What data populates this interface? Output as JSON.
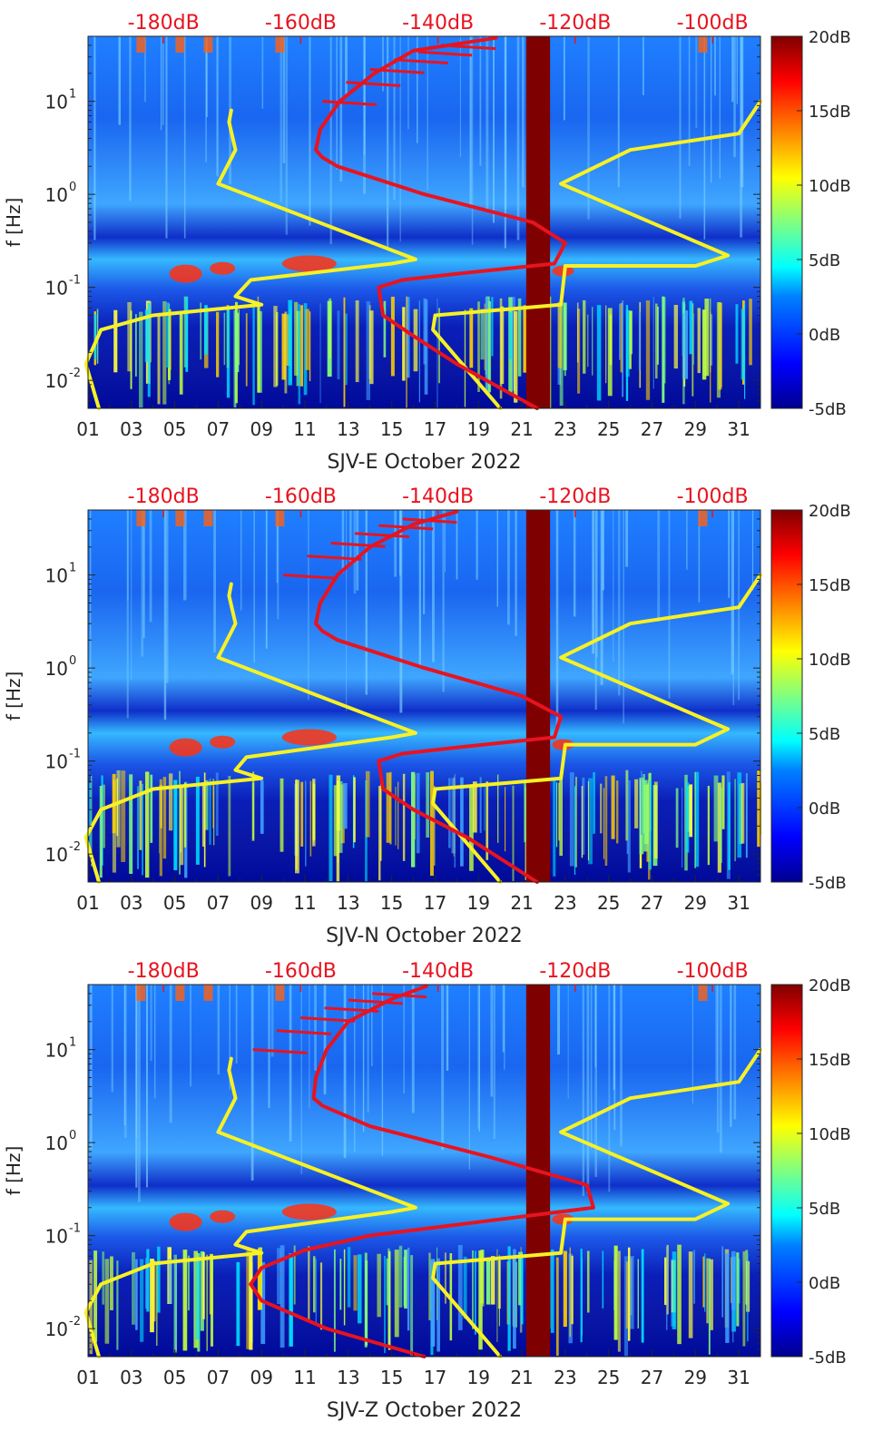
{
  "colors": {
    "top_axis_label": "#e8131f",
    "yellow_curve": "#f7f125",
    "red_curve": "#e8131f",
    "gap_band": "#7f0000",
    "colormap": [
      "#00008f",
      "#0000ff",
      "#0080ff",
      "#00ffff",
      "#80ff80",
      "#ffff00",
      "#ff8000",
      "#ff0000",
      "#800000"
    ]
  },
  "shared": {
    "ylabel": "f [Hz]",
    "y_tick_labels": [
      "10",
      "10",
      "10",
      "10"
    ],
    "y_tick_exponents": [
      "1",
      "0",
      "-1",
      "-2"
    ],
    "x_tick_labels": [
      "01",
      "03",
      "05",
      "07",
      "09",
      "11",
      "13",
      "15",
      "17",
      "19",
      "21",
      "23",
      "25",
      "27",
      "29",
      "31"
    ],
    "top_tick_labels": [
      "-180dB",
      "-160dB",
      "-140dB",
      "-120dB",
      "-100dB"
    ],
    "colorbar_tick_labels": [
      "20dB",
      "15dB",
      "10dB",
      "5dB",
      "0dB",
      "-5dB"
    ]
  },
  "chart_data": [
    {
      "type": "heatmap",
      "xlabel": "SJV-E October 2022",
      "ylabel": "f [Hz]",
      "x_axis": "day of October 2022",
      "x_range": [
        1,
        32
      ],
      "y_scale": "log",
      "y_range_hz": [
        0.005,
        50
      ],
      "y_ticks_hz": [
        10,
        1,
        0.1,
        0.01
      ],
      "top_axis_db_ticks": [
        -180,
        -160,
        -140,
        -120,
        -100
      ],
      "top_axis_db_range": [
        -191,
        -93
      ],
      "colorbar_db_range": [
        -5,
        20
      ],
      "colorbar_ticks_db": [
        20,
        15,
        10,
        5,
        0,
        -5
      ],
      "gap_band_days": [
        21.2,
        22.3
      ],
      "series": [
        {
          "color": "yellow",
          "x": [
            7.6,
            7.5,
            7.8,
            7.0,
            16.1,
            15.0,
            8.5,
            7.8,
            9.0,
            4.0,
            1.6,
            0.9,
            1.5
          ],
          "y_hz": [
            8.0,
            6.0,
            3.0,
            1.3,
            0.2,
            0.18,
            0.12,
            0.08,
            0.065,
            0.05,
            0.035,
            0.015,
            0.005
          ]
        },
        {
          "color": "yellow",
          "x": [
            32.0,
            31.0,
            26.0,
            22.8,
            30.5,
            29.0,
            23.0,
            22.8,
            17.0,
            16.9,
            20.0
          ],
          "y_hz": [
            10.0,
            4.5,
            3.0,
            1.3,
            0.22,
            0.17,
            0.17,
            0.065,
            0.05,
            0.035,
            0.005
          ]
        },
        {
          "color": "red",
          "x": [
            19.8,
            16.0,
            14.2,
            12.6,
            11.7,
            11.5,
            11.8,
            12.5,
            16.5,
            21.5,
            23.0,
            22.5,
            18.0,
            15.5,
            14.4,
            14.6,
            16.0,
            18.0,
            21.7
          ],
          "y_hz": [
            48.0,
            35.0,
            20.0,
            10.0,
            5.0,
            3.0,
            2.5,
            2.0,
            1.0,
            0.5,
            0.3,
            0.18,
            0.14,
            0.12,
            0.1,
            0.05,
            0.03,
            0.015,
            0.005
          ]
        }
      ]
    },
    {
      "type": "heatmap",
      "xlabel": "SJV-N October 2022",
      "ylabel": "f [Hz]",
      "x_axis": "day of October 2022",
      "x_range": [
        1,
        32
      ],
      "y_scale": "log",
      "y_range_hz": [
        0.005,
        50
      ],
      "y_ticks_hz": [
        10,
        1,
        0.1,
        0.01
      ],
      "top_axis_db_ticks": [
        -180,
        -160,
        -140,
        -120,
        -100
      ],
      "top_axis_db_range": [
        -191,
        -93
      ],
      "colorbar_db_range": [
        -5,
        20
      ],
      "colorbar_ticks_db": [
        20,
        15,
        10,
        5,
        0,
        -5
      ],
      "gap_band_days": [
        21.2,
        22.3
      ],
      "series": [
        {
          "color": "yellow",
          "x": [
            7.6,
            7.5,
            7.8,
            7.0,
            16.1,
            15.0,
            8.3,
            7.8,
            9.0,
            4.0,
            1.6,
            0.9,
            1.5
          ],
          "y_hz": [
            8.0,
            6.0,
            3.0,
            1.3,
            0.2,
            0.18,
            0.11,
            0.08,
            0.065,
            0.05,
            0.03,
            0.015,
            0.005
          ]
        },
        {
          "color": "yellow",
          "x": [
            32.0,
            31.0,
            26.0,
            22.8,
            30.5,
            29.0,
            23.0,
            22.8,
            17.0,
            16.9,
            20.0
          ],
          "y_hz": [
            10.0,
            4.5,
            3.0,
            1.3,
            0.22,
            0.15,
            0.15,
            0.065,
            0.05,
            0.035,
            0.005
          ]
        },
        {
          "color": "red",
          "x": [
            18.0,
            16.0,
            14.0,
            12.5,
            11.7,
            11.5,
            11.8,
            12.5,
            16.5,
            21.0,
            22.8,
            22.5,
            18.0,
            15.5,
            14.4,
            14.6,
            16.0,
            18.5,
            21.7
          ],
          "y_hz": [
            48.0,
            35.0,
            20.0,
            10.0,
            5.0,
            3.0,
            2.5,
            2.0,
            1.0,
            0.5,
            0.3,
            0.18,
            0.14,
            0.12,
            0.1,
            0.05,
            0.03,
            0.015,
            0.005
          ]
        }
      ]
    },
    {
      "type": "heatmap",
      "xlabel": "SJV-Z October 2022",
      "ylabel": "f [Hz]",
      "x_axis": "day of October 2022",
      "x_range": [
        1,
        32
      ],
      "y_scale": "log",
      "y_range_hz": [
        0.005,
        50
      ],
      "y_ticks_hz": [
        10,
        1,
        0.1,
        0.01
      ],
      "top_axis_db_ticks": [
        -180,
        -160,
        -140,
        -120,
        -100
      ],
      "top_axis_db_range": [
        -191,
        -93
      ],
      "colorbar_db_range": [
        -5,
        20
      ],
      "colorbar_ticks_db": [
        20,
        15,
        10,
        5,
        0,
        -5
      ],
      "gap_band_days": [
        21.2,
        22.3
      ],
      "series": [
        {
          "color": "yellow",
          "x": [
            7.6,
            7.5,
            7.8,
            7.0,
            16.1,
            15.0,
            8.3,
            7.8,
            9.0,
            4.0,
            1.6,
            0.9,
            1.5
          ],
          "y_hz": [
            8.0,
            6.0,
            3.0,
            1.3,
            0.2,
            0.18,
            0.11,
            0.08,
            0.065,
            0.05,
            0.03,
            0.015,
            0.005
          ]
        },
        {
          "color": "yellow",
          "x": [
            32.0,
            31.0,
            26.0,
            22.8,
            30.5,
            29.0,
            23.0,
            22.8,
            17.0,
            16.9,
            20.0
          ],
          "y_hz": [
            10.0,
            4.5,
            3.0,
            1.3,
            0.22,
            0.15,
            0.15,
            0.065,
            0.05,
            0.035,
            0.005
          ]
        },
        {
          "color": "red",
          "x": [
            16.6,
            15.0,
            13.0,
            12.0,
            11.5,
            11.4,
            11.8,
            14.0,
            19.5,
            24.0,
            24.3,
            19.0,
            14.0,
            11.0,
            9.0,
            8.5,
            9.0,
            12.0,
            16.5
          ],
          "y_hz": [
            48.0,
            35.0,
            20.0,
            10.0,
            5.0,
            3.0,
            2.5,
            1.5,
            0.7,
            0.35,
            0.2,
            0.14,
            0.1,
            0.07,
            0.045,
            0.03,
            0.02,
            0.01,
            0.005
          ]
        }
      ]
    }
  ]
}
